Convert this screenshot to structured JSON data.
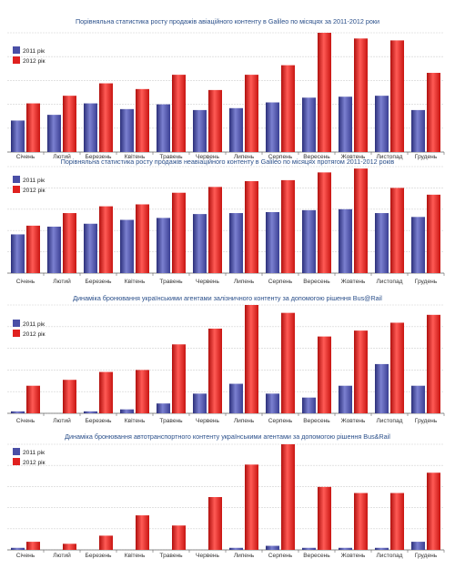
{
  "colors": {
    "series_2011": "#4a4fa6",
    "series_2012": "#e0211f",
    "title": "#2a4f8a",
    "grid": "#d0d0d0",
    "axis": "#666666"
  },
  "legend": {
    "series_2011": "2011 рік",
    "series_2012": "2012 рік"
  },
  "categories": [
    "Січень",
    "Лютий",
    "Березень",
    "Квітень",
    "Травень",
    "Червень",
    "Липень",
    "Серпень",
    "Вересень",
    "Жовтень",
    "Листопад",
    "Грудень"
  ],
  "chart_data": [
    {
      "type": "bar",
      "title": "Порівняльна статистика росту продажів авіаційного контенту в Galileo по місяцях за 2011-2012 роки",
      "categories": [
        "Січень",
        "Лютий",
        "Березень",
        "Квітень",
        "Травень",
        "Червень",
        "Липень",
        "Серпень",
        "Вересень",
        "Жовтень",
        "Листопад",
        "Грудень"
      ],
      "series": [
        {
          "name": "2011 рік",
          "values": [
            33,
            39,
            51,
            45,
            50,
            44,
            46,
            52,
            57,
            58,
            59,
            44
          ]
        },
        {
          "name": "2012 рік",
          "values": [
            51,
            59,
            72,
            66,
            81,
            65,
            81,
            91,
            125,
            119,
            117,
            83
          ]
        }
      ],
      "ylim": [
        0,
        125
      ],
      "grid": true,
      "legend_position": "top-left"
    },
    {
      "type": "bar",
      "title": "Порівняльна статистика росту продажів неавіаційного контенту в Galileo по місяцях протягом 2011-2012 років",
      "categories": [
        "Січень",
        "Лютий",
        "Березень",
        "Квітень",
        "Травень",
        "Червень",
        "Липень",
        "Серпень",
        "Вересень",
        "Жовтень",
        "Листопад",
        "Грудень"
      ],
      "series": [
        {
          "name": "2011 рік",
          "values": [
            40,
            48,
            51,
            55,
            57,
            61,
            62,
            63,
            65,
            66,
            62,
            58
          ]
        },
        {
          "name": "2012 рік",
          "values": [
            49,
            62,
            69,
            71,
            83,
            89,
            95,
            96,
            104,
            108,
            88,
            81
          ]
        }
      ],
      "ylim": [
        0,
        110
      ],
      "grid": true,
      "legend_position": "top-left"
    },
    {
      "type": "bar",
      "title": "Динаміка бронювання українськими агентами залізничного контенту за допомогою рішення Bus@Rail",
      "categories": [
        "Січень",
        "Лютий",
        "Березень",
        "Квітень",
        "Травень",
        "Червень",
        "Липень",
        "Серпень",
        "Вересень",
        "Жовтень",
        "Листопад",
        "Грудень"
      ],
      "series": [
        {
          "name": "2011 рік",
          "values": [
            1,
            0,
            1,
            2,
            5,
            10,
            15,
            10,
            8,
            14,
            25,
            14
          ]
        },
        {
          "name": "2012 рік",
          "values": [
            14,
            17,
            21,
            22,
            35,
            43,
            55,
            51,
            39,
            42,
            46,
            50
          ]
        }
      ],
      "ylim": [
        0,
        55
      ],
      "grid": true,
      "legend_position": "top-left"
    },
    {
      "type": "bar",
      "title": "Динаміка бронювання автотранспортного контенту українськими агентами за допомогою рішення Bus&Rail",
      "categories": [
        "Січень",
        "Лютий",
        "Березень",
        "Квітень",
        "Травень",
        "Червень",
        "Липень",
        "Серпень",
        "Вересень",
        "Жовтень",
        "Листопад",
        "Грудень"
      ],
      "series": [
        {
          "name": "2011 рік",
          "values": [
            1,
            0,
            0,
            0,
            0,
            0,
            1,
            2,
            1,
            1,
            1,
            4
          ]
        },
        {
          "name": "2012 рік",
          "values": [
            4,
            3,
            7,
            17,
            12,
            26,
            42,
            52,
            31,
            28,
            28,
            38
          ]
        }
      ],
      "ylim": [
        0,
        52
      ],
      "grid": true,
      "legend_position": "top-left"
    }
  ]
}
